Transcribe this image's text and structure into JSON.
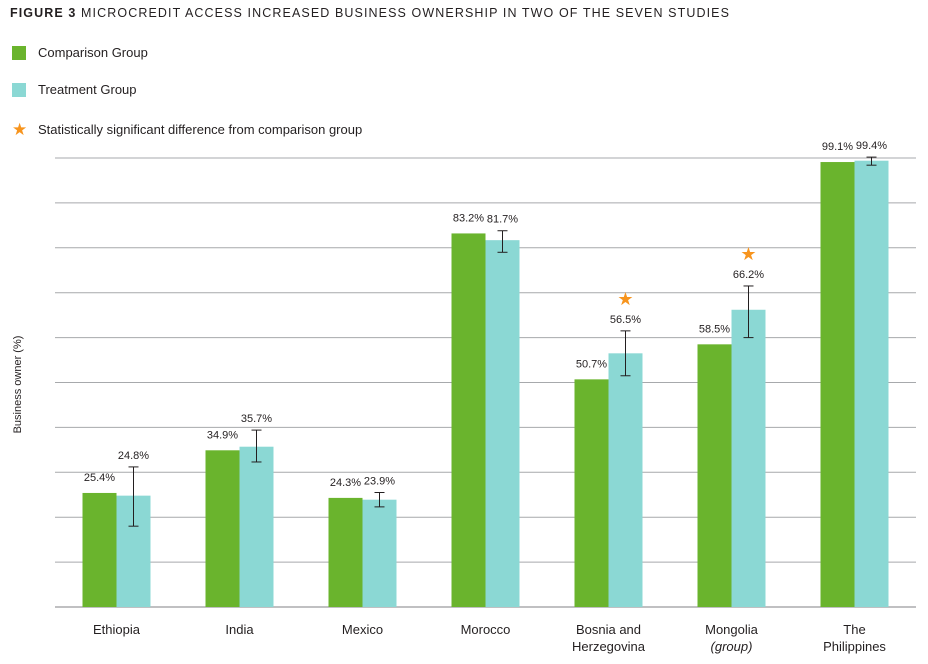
{
  "figure": {
    "label": "FIGURE 3",
    "title": "MICROCREDIT ACCESS INCREASED BUSINESS OWNERSHIP IN TWO OF THE SEVEN STUDIES"
  },
  "legend": {
    "items": [
      {
        "label": "Comparison Group",
        "color": "#6ab42d"
      },
      {
        "label": "Treatment Group",
        "color": "#8bd8d4"
      },
      {
        "label": "Statistically significant difference from comparison group",
        "icon": "star-icon",
        "color": "#f7941d"
      }
    ]
  },
  "chart_data": {
    "type": "bar",
    "ylabel": "Business owner (%)",
    "xlabel": "",
    "ylim": [
      0,
      100
    ],
    "grid": true,
    "legend_placement": "top-left",
    "categories": [
      [
        "Ethiopia"
      ],
      [
        "India"
      ],
      [
        "Mexico"
      ],
      [
        "Morocco"
      ],
      [
        "Bosnia and",
        "Herzegovina"
      ],
      [
        "Mongolia",
        "(group)"
      ],
      [
        "The",
        "Philippines"
      ]
    ],
    "series": [
      {
        "name": "Comparison Group",
        "color": "#6ab42d",
        "values": [
          25.4,
          34.9,
          24.3,
          83.2,
          50.7,
          58.5,
          99.1
        ],
        "labels": [
          "25.4%",
          "34.9%",
          "24.3%",
          "83.2%",
          "50.7%",
          "58.5%",
          "99.1%"
        ]
      },
      {
        "name": "Treatment Group",
        "color": "#8bd8d4",
        "values": [
          24.8,
          35.7,
          23.9,
          81.7,
          56.5,
          66.2,
          99.4
        ],
        "labels": [
          "24.8%",
          "35.7%",
          "23.9%",
          "81.7%",
          "56.5%",
          "66.2%",
          "99.4%"
        ],
        "error_low": [
          18.0,
          32.3,
          22.3,
          79.0,
          51.5,
          60.0,
          98.4
        ],
        "error_high": [
          31.2,
          39.4,
          25.5,
          83.8,
          61.5,
          71.5,
          100.2
        ],
        "significant": [
          false,
          false,
          false,
          false,
          true,
          true,
          false
        ]
      }
    ]
  }
}
